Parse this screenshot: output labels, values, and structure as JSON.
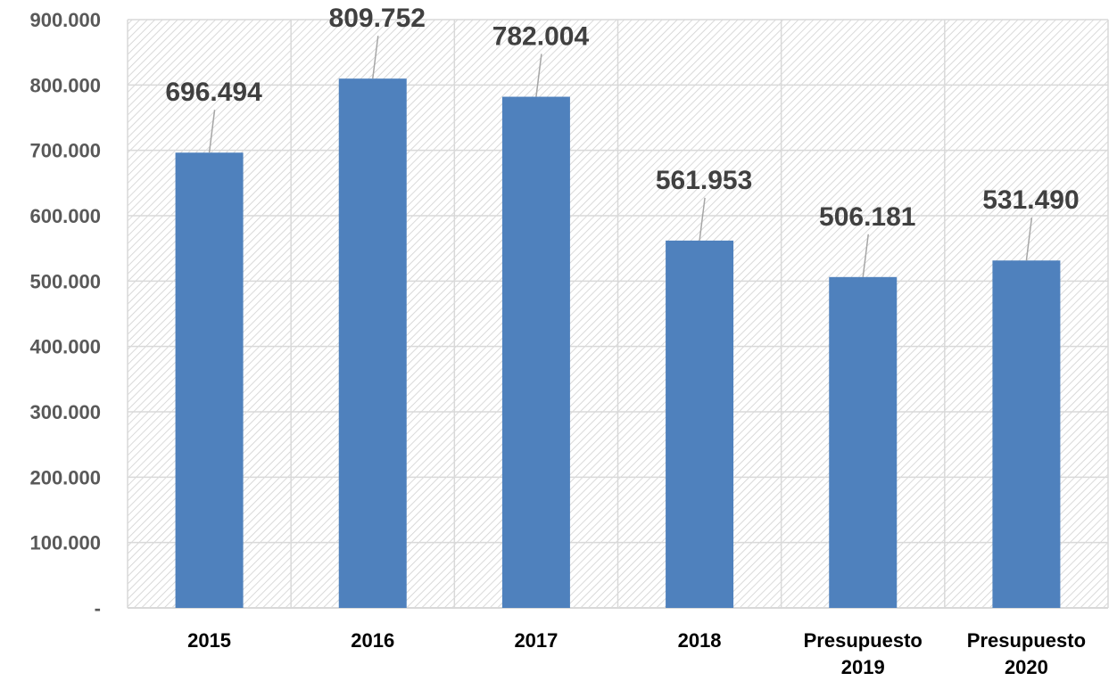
{
  "chart_data": {
    "type": "bar",
    "categories": [
      [
        "2015"
      ],
      [
        "2016"
      ],
      [
        "2017"
      ],
      [
        "2018"
      ],
      [
        "Presupuesto",
        "2019"
      ],
      [
        "Presupuesto",
        "2020"
      ]
    ],
    "values": [
      696494,
      809752,
      782004,
      561953,
      506181,
      531490
    ],
    "data_labels": [
      "696.494",
      "809.752",
      "782.004",
      "561.953",
      "506.181",
      "531.490"
    ],
    "ylim": [
      0,
      900000
    ],
    "yticks": [
      0,
      100000,
      200000,
      300000,
      400000,
      500000,
      600000,
      700000,
      800000,
      900000
    ],
    "ytick_labels": [
      "-",
      "100.000",
      "200.000",
      "300.000",
      "400.000",
      "500.000",
      "600.000",
      "700.000",
      "800.000",
      "900.000"
    ],
    "grid": true,
    "legend": "none",
    "colors": {
      "bar": "#4f81bd",
      "grid": "#d9d9d9",
      "hatch": "#d0d0d0",
      "leader": "#a6a6a6"
    }
  }
}
